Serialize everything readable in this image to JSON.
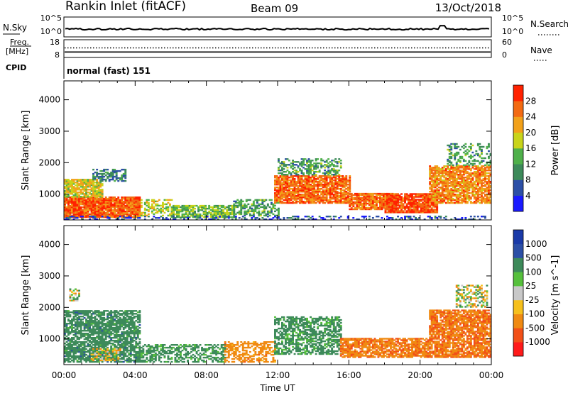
{
  "header": {
    "station": "Rankin Inlet (fitACF)",
    "beam": "Beam 09",
    "date": "13/Oct/2018"
  },
  "noise_panel": {
    "left_label": "N.Sky",
    "right_label": "N.Search",
    "left_ticks": [
      "10^5",
      "10^0"
    ],
    "right_ticks": [
      "10^5",
      "10^0"
    ]
  },
  "freq_panel": {
    "left_label_1": "Freq.",
    "left_label_2": "[MHz]",
    "right_label": "Nave",
    "left_ticks": [
      "18",
      "8"
    ],
    "right_ticks": [
      "60",
      "0"
    ],
    "freq_mhz": 10.5,
    "nave": 33
  },
  "cpid": {
    "label": "CPID",
    "value": "normal (fast) 151"
  },
  "colors": {
    "power": [
      "#1a1aff",
      "#2c4fa6",
      "#3d8a5a",
      "#4fb04a",
      "#c9d41a",
      "#f2a11a",
      "#f36a12",
      "#ff2200"
    ],
    "velocity": [
      "#ff1a1a",
      "#f25018",
      "#f08a12",
      "#f6c01c",
      "#c8c8c8",
      "#56c03c",
      "#3d8a5a",
      "#2c4fa6",
      "#1a3aa8"
    ]
  },
  "chart_data": [
    {
      "type": "heatmap",
      "title": "Power",
      "ylabel": "Slant Range [km]",
      "xlabel": "",
      "x_tick_labels": [
        "00:00",
        "04:00",
        "08:00",
        "12:00",
        "16:00",
        "20:00",
        "00:00"
      ],
      "xlim_hours": [
        0,
        24
      ],
      "ylim": [
        180,
        4600
      ],
      "y_ticks": [
        1000,
        2000,
        3000,
        4000
      ],
      "colorbar": {
        "label": "Power [dB]",
        "ticks": [
          "4",
          "8",
          "12",
          "16",
          "20",
          "24",
          "28"
        ],
        "range": [
          0,
          32
        ]
      },
      "regions": [
        {
          "t0": 0,
          "t1": 4.3,
          "r0": 250,
          "r1": 900,
          "value": 27,
          "density": 0.95
        },
        {
          "t0": 0,
          "t1": 2.2,
          "r0": 900,
          "r1": 1450,
          "value": 19,
          "density": 0.8
        },
        {
          "t0": 1.6,
          "t1": 3.5,
          "r0": 1400,
          "r1": 1800,
          "value": 9,
          "density": 0.6
        },
        {
          "t0": 4.3,
          "t1": 6.0,
          "r0": 300,
          "r1": 800,
          "value": 18,
          "density": 0.5
        },
        {
          "t0": 6.0,
          "t1": 9.5,
          "r0": 250,
          "r1": 650,
          "value": 15,
          "density": 0.75
        },
        {
          "t0": 9.5,
          "t1": 12.0,
          "r0": 300,
          "r1": 800,
          "value": 12,
          "density": 0.55
        },
        {
          "t0": 11.8,
          "t1": 16.0,
          "r0": 700,
          "r1": 1600,
          "value": 26,
          "density": 0.85
        },
        {
          "t0": 12.0,
          "t1": 15.5,
          "r0": 1600,
          "r1": 2100,
          "value": 12,
          "density": 0.5
        },
        {
          "t0": 16.0,
          "t1": 18.5,
          "r0": 500,
          "r1": 1000,
          "value": 26,
          "density": 0.85
        },
        {
          "t0": 18.0,
          "t1": 21.0,
          "r0": 400,
          "r1": 1000,
          "value": 28,
          "density": 0.9
        },
        {
          "t0": 20.5,
          "t1": 24.0,
          "r0": 700,
          "r1": 1900,
          "value": 24,
          "density": 0.8
        },
        {
          "t0": 21.5,
          "t1": 24.0,
          "r0": 1900,
          "r1": 2600,
          "value": 12,
          "density": 0.35
        },
        {
          "t0": 0,
          "t1": 24.0,
          "r0": 180,
          "r1": 300,
          "value": 6,
          "density": 0.3
        }
      ]
    },
    {
      "type": "heatmap",
      "title": "Velocity",
      "ylabel": "Slant Range [km]",
      "xlabel": "Time UT",
      "x_tick_labels": [
        "00:00",
        "04:00",
        "08:00",
        "12:00",
        "16:00",
        "20:00",
        "00:00"
      ],
      "xlim_hours": [
        0,
        24
      ],
      "ylim": [
        180,
        4600
      ],
      "y_ticks": [
        1000,
        2000,
        3000,
        4000
      ],
      "colorbar": {
        "label": "Velocity [m s^-1]",
        "ticks": [
          "1000",
          "500",
          "100",
          "25",
          "-25",
          "-100",
          "-500",
          "-1000"
        ],
        "levels": [
          -1500,
          -1000,
          -500,
          -100,
          -25,
          25,
          100,
          500,
          1000,
          1500
        ]
      },
      "regions": [
        {
          "t0": 0,
          "t1": 4.3,
          "r0": 250,
          "r1": 1900,
          "value": 300,
          "density": 0.75
        },
        {
          "t0": 1.5,
          "t1": 3.2,
          "r0": 300,
          "r1": 700,
          "value": 0,
          "density": 0.7
        },
        {
          "t0": 4.3,
          "t1": 9.0,
          "r0": 250,
          "r1": 800,
          "value": 250,
          "density": 0.6
        },
        {
          "t0": 9.0,
          "t1": 11.8,
          "r0": 250,
          "r1": 900,
          "value": -300,
          "density": 0.5
        },
        {
          "t0": 11.8,
          "t1": 15.5,
          "r0": 500,
          "r1": 1700,
          "value": 250,
          "density": 0.6
        },
        {
          "t0": 15.5,
          "t1": 20.5,
          "r0": 400,
          "r1": 1000,
          "value": -400,
          "density": 0.8
        },
        {
          "t0": 20.5,
          "t1": 24.0,
          "r0": 400,
          "r1": 1900,
          "value": -450,
          "density": 0.8
        },
        {
          "t0": 22.0,
          "t1": 23.8,
          "r0": 2000,
          "r1": 2700,
          "value": 0,
          "density": 0.45
        },
        {
          "t0": 0.3,
          "t1": 0.8,
          "r0": 2200,
          "r1": 2600,
          "value": 0,
          "density": 0.5
        }
      ]
    }
  ]
}
